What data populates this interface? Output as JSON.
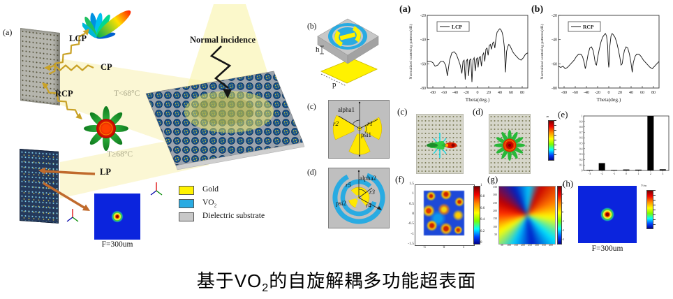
{
  "caption": {
    "prefix": "基于VO",
    "sub": "2",
    "suffix": "的自旋解耦多功能超表面"
  },
  "scene": {
    "panel_label": "(a)",
    "normal_incidence": "Normal incidence",
    "temp_below": "T<68°C",
    "temp_above": "T≥68°C",
    "waves": {
      "lcp": "LCP",
      "cp": "CP",
      "rcp": "RCP",
      "lp": "LP"
    },
    "focal_label": "F=300um"
  },
  "legend": {
    "items": [
      {
        "label": "Gold",
        "color": "#FFF200"
      },
      {
        "label_prefix": "VO",
        "label_sub": "2",
        "color": "#29ABE2"
      },
      {
        "label": "Dielectric substrate",
        "color": "#C8C8C8"
      }
    ]
  },
  "unit_cells": {
    "b": {
      "label": "(b)",
      "h": "h",
      "p": "p"
    },
    "c": {
      "label": "(c)",
      "params": {
        "alpha": "alpha1",
        "r_left": "r2",
        "r_right": "r1",
        "psi": "psi1"
      }
    },
    "d": {
      "label": "(d)",
      "params": {
        "r5": "r5",
        "alpha": "alpha2",
        "r3": "r3",
        "psi": "psi2",
        "r4": "r4"
      }
    }
  },
  "plots": {
    "a_label": "(a)",
    "b_label": "(b)",
    "c_label": "(c)",
    "d_label": "(d)",
    "e_label": "(e)",
    "f_label": "(f)",
    "g_label": "(g)",
    "h_label": "(h)",
    "h_focal_label": "F=300um",
    "mid_colorbar_title": "dB",
    "h_colorbar_title": "V/m"
  },
  "chart_data": [
    {
      "id": "lcp",
      "type": "line",
      "legend": "LCP",
      "xlabel": "Theta(deg.)",
      "ylabel": "Normalized scattering patterns(dB)",
      "xlim": [
        -90,
        90
      ],
      "ylim": [
        -80,
        -20
      ],
      "xticks": [
        -80,
        -60,
        -40,
        -20,
        0,
        20,
        40,
        60,
        80
      ],
      "yticks": [
        -20,
        -40,
        -60,
        -80
      ],
      "points": [
        [
          -90,
          -58
        ],
        [
          -84,
          -58
        ],
        [
          -80,
          -59
        ],
        [
          -76,
          -62
        ],
        [
          -71,
          -61
        ],
        [
          -66,
          -58
        ],
        [
          -61,
          -58
        ],
        [
          -57,
          -61
        ],
        [
          -54,
          -70
        ],
        [
          -50,
          -57
        ],
        [
          -46,
          -51
        ],
        [
          -42,
          -50
        ],
        [
          -38,
          -52
        ],
        [
          -34,
          -57
        ],
        [
          -31,
          -61
        ],
        [
          -28,
          -68
        ],
        [
          -26,
          -58
        ],
        [
          -24,
          -57
        ],
        [
          -22,
          -73
        ],
        [
          -20,
          -58
        ],
        [
          -18,
          -56
        ],
        [
          -16,
          -70
        ],
        [
          -14,
          -57
        ],
        [
          -12,
          -56
        ],
        [
          -10,
          -75
        ],
        [
          -8,
          -57
        ],
        [
          -6,
          -55
        ],
        [
          -4,
          -66
        ],
        [
          -2,
          -56
        ],
        [
          0,
          -55
        ],
        [
          1,
          -63
        ],
        [
          3,
          -55
        ],
        [
          5,
          -54
        ],
        [
          7,
          -62
        ],
        [
          9,
          -53
        ],
        [
          11,
          -51
        ],
        [
          13,
          -58
        ],
        [
          15,
          -48
        ],
        [
          17,
          -47
        ],
        [
          19,
          -53
        ],
        [
          21,
          -45
        ],
        [
          23,
          -44
        ],
        [
          25,
          -48
        ],
        [
          27,
          -43
        ],
        [
          29,
          -42
        ],
        [
          31,
          -47
        ],
        [
          33,
          -39
        ],
        [
          35,
          -34
        ],
        [
          38,
          -32
        ],
        [
          40,
          -31
        ],
        [
          42,
          -32
        ],
        [
          44,
          -34
        ],
        [
          46,
          -38
        ],
        [
          48,
          -46
        ],
        [
          50,
          -67
        ],
        [
          52,
          -50
        ],
        [
          54,
          -46
        ],
        [
          56,
          -44
        ],
        [
          58,
          -45
        ],
        [
          60,
          -47
        ],
        [
          63,
          -50
        ],
        [
          66,
          -52
        ],
        [
          70,
          -54
        ],
        [
          74,
          -56
        ],
        [
          78,
          -57
        ],
        [
          82,
          -55
        ],
        [
          86,
          -52
        ],
        [
          90,
          -51
        ]
      ]
    },
    {
      "id": "rcp",
      "type": "line",
      "legend": "RCP",
      "xlabel": "Theta(deg.)",
      "ylabel": "Normalized scattering patterns(dB)",
      "xlim": [
        -90,
        90
      ],
      "ylim": [
        -80,
        -20
      ],
      "xticks": [
        -80,
        -60,
        -40,
        -20,
        0,
        20,
        40,
        60,
        80
      ],
      "yticks": [
        -20,
        -40,
        -60,
        -80
      ],
      "points": [
        [
          -90,
          -62
        ],
        [
          -86,
          -63
        ],
        [
          -82,
          -62
        ],
        [
          -78,
          -64
        ],
        [
          -74,
          -63
        ],
        [
          -70,
          -61
        ],
        [
          -66,
          -59
        ],
        [
          -62,
          -57
        ],
        [
          -58,
          -54
        ],
        [
          -54,
          -52
        ],
        [
          -50,
          -52
        ],
        [
          -47,
          -54
        ],
        [
          -44,
          -59
        ],
        [
          -42,
          -64
        ],
        [
          -40,
          -60
        ],
        [
          -37,
          -52
        ],
        [
          -34,
          -47
        ],
        [
          -31,
          -46
        ],
        [
          -28,
          -49
        ],
        [
          -26,
          -54
        ],
        [
          -24,
          -60
        ],
        [
          -22,
          -61
        ],
        [
          -20,
          -55
        ],
        [
          -17,
          -48
        ],
        [
          -14,
          -42
        ],
        [
          -11,
          -38
        ],
        [
          -8,
          -36
        ],
        [
          -6,
          -35
        ],
        [
          -4,
          -37
        ],
        [
          -2,
          -45
        ],
        [
          -1,
          -58
        ],
        [
          0,
          -63
        ],
        [
          1,
          -58
        ],
        [
          2,
          -45
        ],
        [
          4,
          -37
        ],
        [
          6,
          -35
        ],
        [
          8,
          -36
        ],
        [
          11,
          -38
        ],
        [
          14,
          -42
        ],
        [
          17,
          -48
        ],
        [
          20,
          -55
        ],
        [
          22,
          -61
        ],
        [
          24,
          -60
        ],
        [
          26,
          -54
        ],
        [
          28,
          -49
        ],
        [
          31,
          -46
        ],
        [
          34,
          -47
        ],
        [
          37,
          -52
        ],
        [
          40,
          -60
        ],
        [
          42,
          -67
        ],
        [
          44,
          -59
        ],
        [
          47,
          -54
        ],
        [
          50,
          -52
        ],
        [
          54,
          -52
        ],
        [
          58,
          -54
        ],
        [
          62,
          -57
        ],
        [
          66,
          -59
        ],
        [
          70,
          -61
        ],
        [
          74,
          -63
        ],
        [
          78,
          -64
        ],
        [
          82,
          -62
        ],
        [
          86,
          -60
        ],
        [
          90,
          -58
        ]
      ]
    },
    {
      "id": "orders",
      "type": "bar",
      "categories": [
        -3,
        -2,
        -1,
        0,
        1,
        2,
        3
      ],
      "values": [
        0.004,
        0.135,
        0.004,
        0.018,
        0.015,
        1.0,
        0.022
      ],
      "ylim": [
        0,
        1
      ],
      "yticks": [
        0,
        0.1,
        0.2,
        0.3,
        0.4,
        0.5,
        0.6,
        0.7,
        0.8,
        0.9,
        1
      ]
    },
    {
      "id": "f",
      "type": "heatmap",
      "xticks": [
        -1,
        0,
        1
      ],
      "yticks": [
        1.5,
        1,
        0.5,
        0,
        -0.5,
        -1,
        -1.5
      ],
      "colorbar_ticks": [
        1,
        0.8,
        0.6,
        0.4,
        0.2,
        0
      ],
      "description": "normalized amplitude distribution map"
    },
    {
      "id": "g",
      "type": "heatmap",
      "xticks": [
        50,
        100,
        150,
        200,
        250,
        300,
        350,
        400
      ],
      "yticks": [
        350,
        300,
        250,
        200,
        150,
        100,
        50
      ],
      "colorbar_ticks": [
        3,
        2,
        1,
        0,
        -1,
        -2,
        -3
      ],
      "description": "spiral (vortex) phase distribution map"
    },
    {
      "id": "h",
      "type": "heatmap",
      "label": "F=300um",
      "description": "focal spot intensity map at F=300um"
    }
  ]
}
